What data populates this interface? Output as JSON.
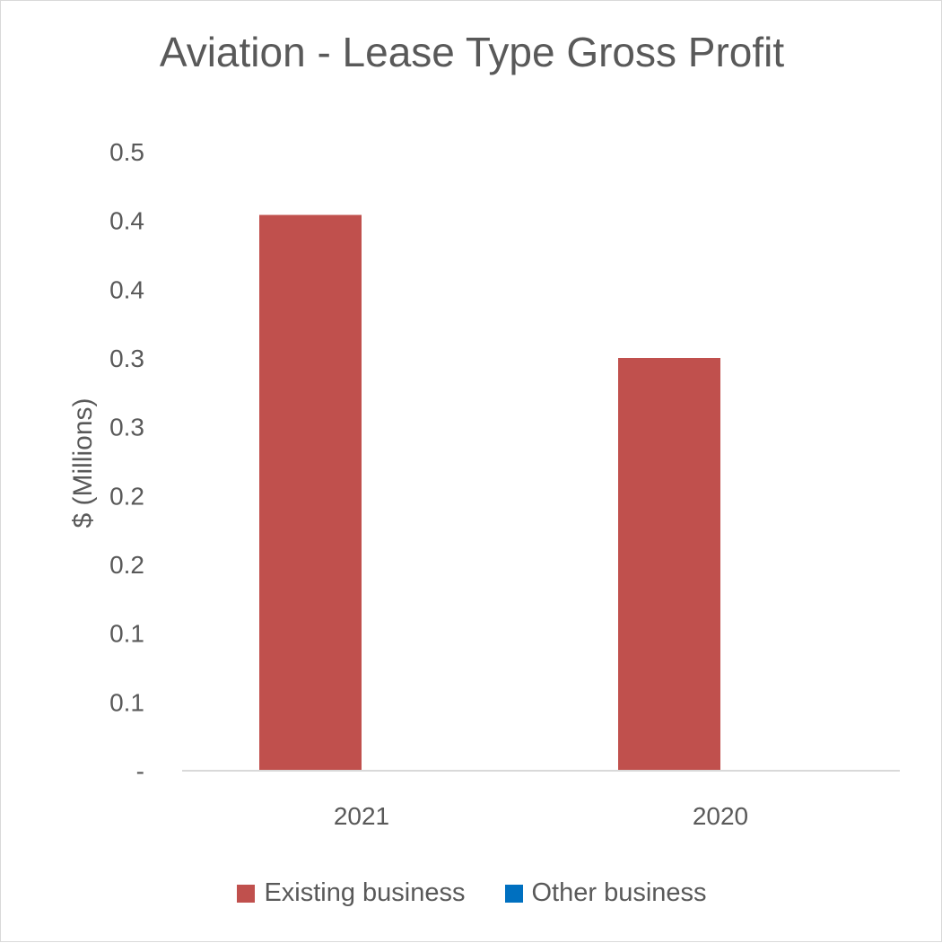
{
  "chart_data": {
    "type": "bar",
    "title": "Aviation - Lease Type Gross Profit",
    "xlabel": "",
    "ylabel": "$ (Millions)",
    "categories": [
      "2021",
      "2020"
    ],
    "y_tick_labels": [
      "-",
      "0.1",
      "0.1",
      "0.2",
      "0.2",
      "0.3",
      "0.3",
      "0.4",
      "0.4",
      "0.5"
    ],
    "ylim": [
      0,
      0.45
    ],
    "series": [
      {
        "name": "Existing business",
        "values": [
          0.404,
          0.3
        ],
        "color": "#c0504d"
      },
      {
        "name": "Other business",
        "values": [
          0,
          0
        ],
        "color": "#0070c0"
      }
    ],
    "grid": false,
    "legend": "bottom"
  }
}
